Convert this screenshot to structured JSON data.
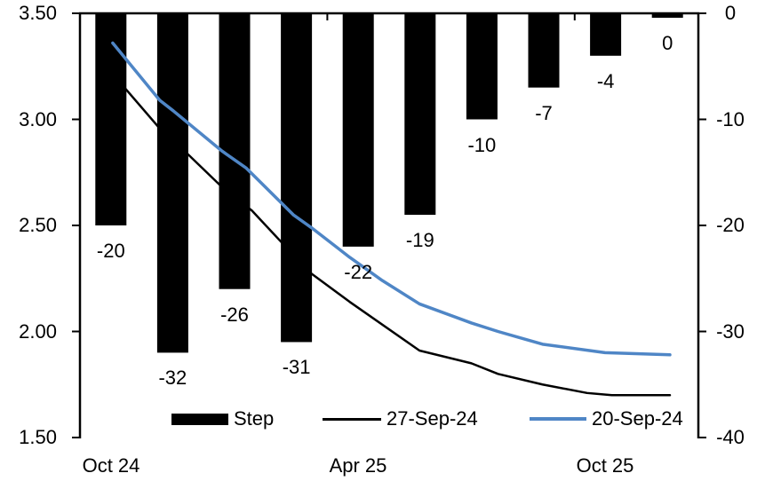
{
  "chart_data": {
    "type": "combo-bar-line",
    "title": "",
    "background": "#ffffff",
    "grid": false,
    "bar_series": {
      "name": "Step",
      "axis": "right",
      "color": "#000000",
      "values": [
        -20,
        -32,
        -26,
        -31,
        -22,
        -19,
        -10,
        -7,
        -4,
        0
      ],
      "labels": [
        "-20",
        "-32",
        "-26",
        "-31",
        "-22",
        "-19",
        "-10",
        "-7",
        "-4",
        "0"
      ]
    },
    "line_series": [
      {
        "name": "27-Sep-24",
        "axis": "left",
        "color": "#000000",
        "stroke_width": 2.5,
        "points": [
          [
            0.53,
            3.2
          ],
          [
            0.72,
            3.15
          ],
          [
            1.31,
            2.95
          ],
          [
            1.73,
            2.84
          ],
          [
            2.3,
            2.68
          ],
          [
            2.78,
            2.57
          ],
          [
            3.71,
            2.28
          ],
          [
            4.36,
            2.14
          ],
          [
            5.49,
            1.91
          ],
          [
            6.33,
            1.85
          ],
          [
            6.76,
            1.8
          ],
          [
            7.48,
            1.75
          ],
          [
            8.2,
            1.71
          ],
          [
            8.6,
            1.7
          ],
          [
            9.54,
            1.7
          ]
        ]
      },
      {
        "name": "20-Sep-24",
        "axis": "left",
        "color": "#4F86C6",
        "stroke_width": 3.5,
        "points": [
          [
            0.53,
            3.36
          ],
          [
            1.29,
            3.09
          ],
          [
            1.51,
            3.04
          ],
          [
            2.3,
            2.85
          ],
          [
            2.69,
            2.77
          ],
          [
            3.45,
            2.55
          ],
          [
            3.74,
            2.49
          ],
          [
            4.36,
            2.35
          ],
          [
            4.89,
            2.24
          ],
          [
            5.49,
            2.13
          ],
          [
            6.33,
            2.04
          ],
          [
            6.76,
            2.0
          ],
          [
            7.48,
            1.94
          ],
          [
            8.49,
            1.9
          ],
          [
            9.54,
            1.89
          ]
        ]
      }
    ],
    "left_axis": {
      "min": 1.5,
      "max": 3.5,
      "ticks": [
        "3.50",
        "3.00",
        "2.50",
        "2.00",
        "1.50"
      ]
    },
    "right_axis": {
      "min": -40,
      "max": 0,
      "ticks": [
        "0",
        "-10",
        "-20",
        "-30",
        "-40"
      ]
    },
    "x_axis": {
      "categories_count": 10,
      "labels": [
        {
          "text": "Oct 24",
          "category": 0
        },
        {
          "text": "Apr 25",
          "category": 4
        },
        {
          "text": "Oct 25",
          "category": 8
        }
      ]
    },
    "legend": [
      {
        "label": "Step",
        "swatch": "bar",
        "color": "#000000"
      },
      {
        "label": "27-Sep-24",
        "swatch": "line",
        "color": "#000000"
      },
      {
        "label": "20-Sep-24",
        "swatch": "line",
        "color": "#4F86C6"
      }
    ]
  }
}
